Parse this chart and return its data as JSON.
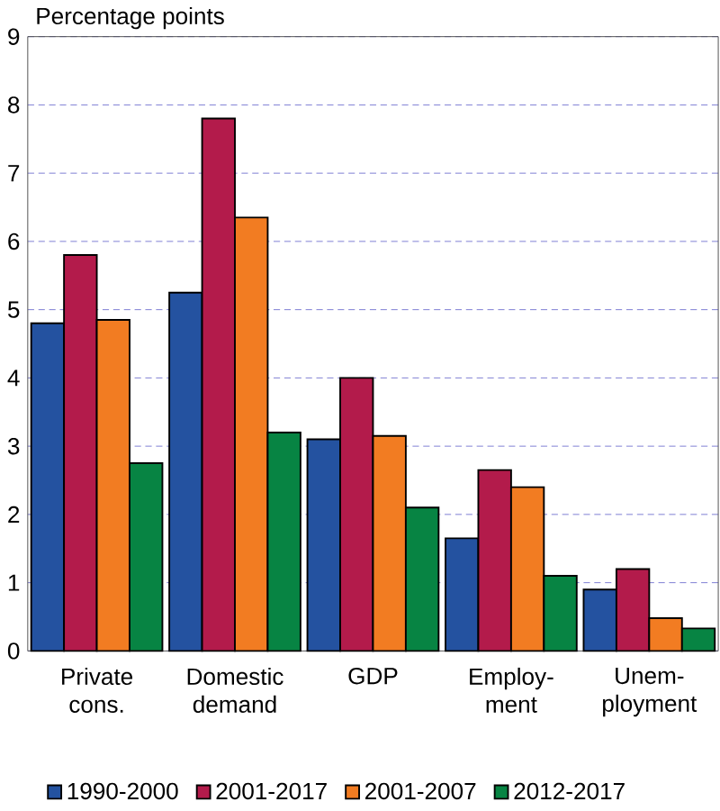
{
  "chart_data": {
    "type": "bar",
    "ylabel": "Percentage points",
    "categories": [
      "Private cons.",
      "Domestic demand",
      "GDP",
      "Employ-ment",
      "Unem-ployment"
    ],
    "series": [
      {
        "name": "1990-2000",
        "color": "#2452a0",
        "values": [
          4.8,
          5.25,
          3.1,
          1.65,
          0.9
        ]
      },
      {
        "name": "2001-2017",
        "color": "#b31b4b",
        "values": [
          5.8,
          7.8,
          4.0,
          2.65,
          1.2
        ]
      },
      {
        "name": "2001-2007",
        "color": "#f27c22",
        "values": [
          4.85,
          6.35,
          3.15,
          2.4,
          0.48
        ]
      },
      {
        "name": "2012-2017",
        "color": "#078443",
        "values": [
          2.75,
          3.2,
          2.1,
          1.1,
          0.33
        ]
      }
    ],
    "ylim": [
      0,
      9
    ],
    "yticks": [
      0,
      1,
      2,
      3,
      4,
      5,
      6,
      7,
      8,
      9
    ],
    "grid": "y",
    "legend": "bottom"
  }
}
